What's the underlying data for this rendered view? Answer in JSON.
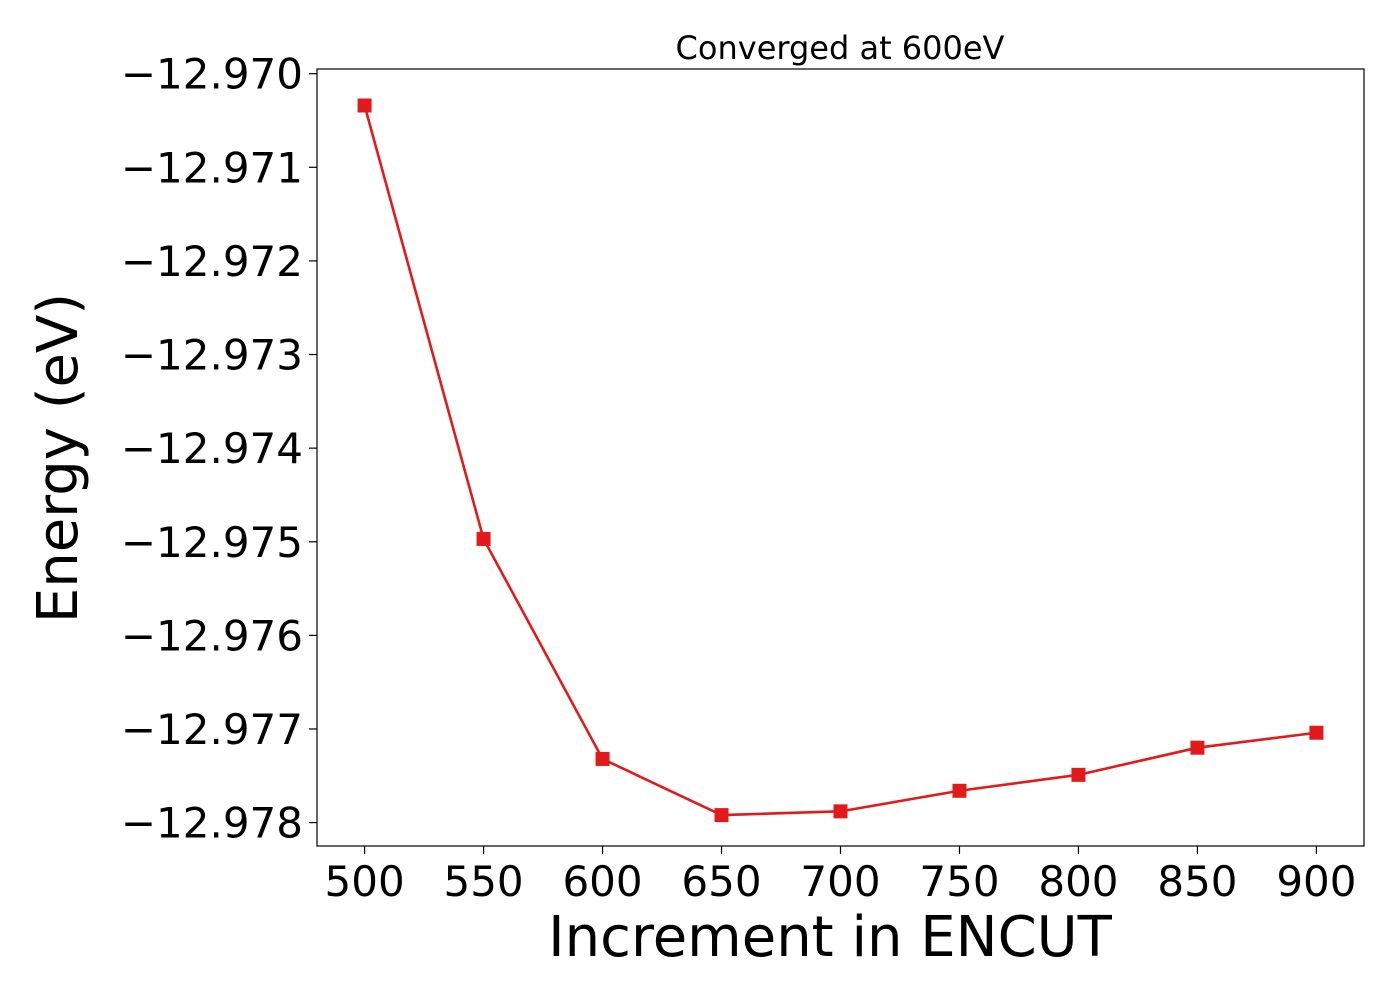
{
  "chart_data": {
    "type": "line",
    "title": "Converged at 600eV",
    "xlabel": "Increment in ENCUT",
    "ylabel": "Energy (eV)",
    "x": [
      500,
      550,
      600,
      650,
      700,
      750,
      800,
      850,
      900
    ],
    "series": [
      {
        "values": [
          -12.97034,
          -12.97497,
          -12.97732,
          -12.97792,
          -12.97788,
          -12.97766,
          -12.97749,
          -12.9772,
          -12.97704
        ],
        "color": "#e31a1c",
        "marker": "square"
      }
    ],
    "xlim": [
      480,
      920
    ],
    "ylim": [
      -12.97825,
      -12.96995
    ],
    "xticks": [
      500,
      550,
      600,
      650,
      700,
      750,
      800,
      850,
      900
    ],
    "xtick_labels": [
      "500",
      "550",
      "600",
      "650",
      "700",
      "750",
      "800",
      "850",
      "900"
    ],
    "yticks": [
      -12.97,
      -12.971,
      -12.972,
      -12.973,
      -12.974,
      -12.975,
      -12.976,
      -12.977,
      -12.978
    ],
    "ytick_labels": [
      "−12.970",
      "−12.971",
      "−12.972",
      "−12.973",
      "−12.974",
      "−12.975",
      "−12.976",
      "−12.977",
      "−12.978"
    ],
    "grid": false,
    "legend": "none"
  }
}
